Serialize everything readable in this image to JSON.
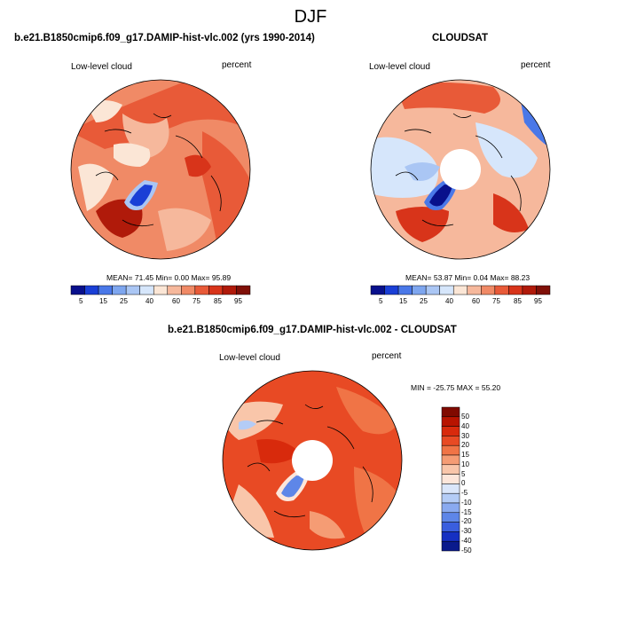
{
  "figure": {
    "title": "DJF"
  },
  "panels": [
    {
      "title": "b.e21.B1850cmip6.f09_g17.DAMIP-hist-vlc.002 (yrs 1990-2014)",
      "left_label": "Low-level cloud",
      "right_label": "percent",
      "stats": "MEAN=  71.45  Min=   0.00  Max=  95.89",
      "colorbar_ticks": [
        "5",
        "15",
        "25",
        "40",
        "60",
        "75",
        "85",
        "95"
      ]
    },
    {
      "title": "CLOUDSAT",
      "left_label": "Low-level cloud",
      "right_label": "percent",
      "stats": "MEAN=  53.87  Min=   0.04  Max=  88.23",
      "colorbar_ticks": [
        "5",
        "15",
        "25",
        "40",
        "60",
        "75",
        "85",
        "95"
      ]
    },
    {
      "title": "b.e21.B1850cmip6.f09_g17.DAMIP-hist-vlc.002 - CLOUDSAT",
      "left_label": "Low-level cloud",
      "right_label": "percent",
      "stats": "MIN = -25.75 MAX =  55.20",
      "colorbar_ticks": [
        "50",
        "40",
        "30",
        "20",
        "15",
        "10",
        "5",
        "0",
        "-5",
        "-10",
        "-15",
        "-20",
        "-30",
        "-40",
        "-50"
      ]
    }
  ],
  "colors": {
    "abs_scale": [
      "#08108c",
      "#1a3fd6",
      "#4a78e8",
      "#7ea6ef",
      "#aac6f4",
      "#d6e6fb",
      "#fbe6d6",
      "#f6b89c",
      "#f08a66",
      "#e85a38",
      "#d8341a",
      "#b01a0a",
      "#801008"
    ],
    "diff_scale": [
      "#800a00",
      "#b81400",
      "#d82a0c",
      "#e84a24",
      "#f07446",
      "#f59c74",
      "#f9c6aa",
      "#fde6da",
      "#dae6fa",
      "#b4ccf6",
      "#8aaaf0",
      "#5e86e8",
      "#3a5ede",
      "#1630c2",
      "#0a1a8c"
    ],
    "background": "#ffffff"
  }
}
